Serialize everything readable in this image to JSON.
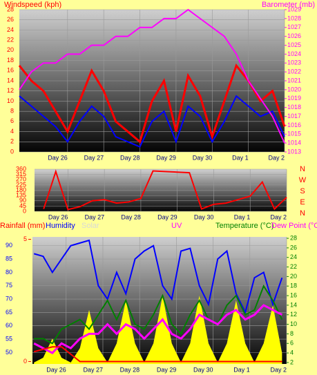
{
  "chart_data": [
    {
      "type": "line",
      "y_label": "Windspeed (kph)",
      "y2_label": "Barometer (mb)",
      "x": [
        0,
        8,
        16,
        24,
        32,
        40,
        48,
        56,
        64,
        72,
        80,
        88,
        96,
        104,
        112,
        120,
        128,
        136,
        144,
        152,
        160,
        168,
        176
      ],
      "xlim": [
        0,
        176
      ],
      "xticks": [
        {
          "value": 32,
          "label": "Day 26"
        },
        {
          "value": 56,
          "label": "Day 27"
        },
        {
          "value": 80,
          "label": "Day 28"
        },
        {
          "value": 104,
          "label": "Day 29"
        },
        {
          "value": 128,
          "label": "Day 30"
        },
        {
          "value": 152,
          "label": "Day 1"
        },
        {
          "value": 176,
          "label": "Day 2"
        }
      ],
      "ylim": [
        0,
        28
      ],
      "yticks": [
        0,
        2,
        4,
        6,
        8,
        10,
        12,
        14,
        16,
        18,
        20,
        22,
        24,
        26,
        28
      ],
      "y_color": "#ff0000",
      "y2lim": [
        1013,
        1029
      ],
      "y2ticks": [
        1013,
        1014,
        1015,
        1016,
        1017,
        1018,
        1019,
        1020,
        1021,
        1022,
        1023,
        1024,
        1025,
        1026,
        1027,
        1028,
        1029
      ],
      "y2_color": "#ff00ff",
      "series": [
        {
          "color": "#ff0000",
          "width": 3,
          "values": [
            17,
            14,
            12,
            8,
            4,
            10,
            16,
            12,
            6,
            4,
            2,
            10,
            14,
            4,
            15,
            11,
            3,
            10,
            17,
            14,
            10,
            12,
            5
          ]
        },
        {
          "color": "#0000ff",
          "width": 2,
          "values": [
            11,
            9,
            7,
            5,
            2,
            6,
            9,
            7,
            3,
            2,
            1,
            6,
            8,
            2,
            9,
            7,
            2,
            6,
            11,
            9,
            7,
            8,
            3
          ]
        },
        {
          "color": "#ff00ff",
          "width": 2,
          "axis": "y2",
          "values": [
            1020,
            1022,
            1023,
            1023,
            1024,
            1024,
            1025,
            1025,
            1026,
            1026,
            1027,
            1027,
            1028,
            1028,
            1029,
            1028,
            1027,
            1026,
            1024,
            1021,
            1019,
            1017,
            1014
          ]
        }
      ]
    },
    {
      "type": "line",
      "compass_labels": [
        "N",
        "W",
        "S",
        "E",
        "N"
      ],
      "x": [
        16,
        24,
        32,
        40,
        48,
        56,
        64,
        72,
        80,
        88,
        96,
        104,
        112,
        120,
        128,
        136,
        144,
        152,
        160,
        168,
        176
      ],
      "xlim": [
        10,
        176
      ],
      "xticks": [
        {
          "value": 32,
          "label": "Day 26"
        },
        {
          "value": 56,
          "label": "Day 27"
        },
        {
          "value": 80,
          "label": "Day 28"
        },
        {
          "value": 104,
          "label": "Day 29"
        },
        {
          "value": 128,
          "label": "Day 30"
        },
        {
          "value": 152,
          "label": "Day 1"
        },
        {
          "value": 176,
          "label": "Day 2"
        }
      ],
      "ylim": [
        0,
        360
      ],
      "yticks": [
        0,
        45,
        90,
        135,
        180,
        225,
        270,
        315,
        360
      ],
      "y_color": "#ff0000",
      "series": [
        {
          "color": "#ff0000",
          "width": 2,
          "values": [
            20,
            340,
            15,
            40,
            90,
            100,
            70,
            80,
            110,
            345,
            340,
            335,
            330,
            20,
            60,
            70,
            100,
            130,
            250,
            20,
            120
          ]
        }
      ]
    },
    {
      "type": "line",
      "labels": [
        {
          "text": "Rainfall (mm)",
          "color": "#ff0000"
        },
        {
          "text": "Humidity",
          "color": "#0000ff"
        },
        {
          "text": "Solar",
          "color": "#d8d8d8"
        },
        {
          "text": "UV",
          "color": "#ff00ff"
        },
        {
          "text": "Temperature (°C)",
          "color": "#008000"
        },
        {
          "text": "Dew Point (°C",
          "color": "#ff00ff"
        }
      ],
      "x": [
        11,
        17,
        23,
        29,
        35,
        41,
        47,
        53,
        59,
        65,
        71,
        77,
        83,
        89,
        95,
        101,
        107,
        113,
        119,
        125,
        131,
        137,
        143,
        149,
        155,
        161,
        167,
        173
      ],
      "xlim": [
        10,
        176
      ],
      "xticks": [
        {
          "value": 32,
          "label": "Day 26"
        },
        {
          "value": 56,
          "label": "Day 27"
        },
        {
          "value": 80,
          "label": "Day 28"
        },
        {
          "value": 104,
          "label": "Day 29"
        },
        {
          "value": 128,
          "label": "Day 30"
        },
        {
          "value": 152,
          "label": "Day 1"
        },
        {
          "value": 176,
          "label": "Day 2"
        }
      ],
      "ylim": [
        45.7,
        93.3
      ],
      "yticks": [
        50,
        55,
        60,
        65,
        70,
        75,
        80,
        85,
        90
      ],
      "y_color": "#0000ff",
      "y2lim": [
        1.7,
        28.3
      ],
      "y2ticks": [
        2,
        4,
        6,
        8,
        10,
        12,
        14,
        16,
        18,
        20,
        22,
        24,
        26,
        28
      ],
      "y2_color": "#008000",
      "rainlim": [
        -0.1,
        5.1
      ],
      "rainticks": [
        0,
        5
      ],
      "rain_color": "#ff0000",
      "series": [
        {
          "color": "#ffff00",
          "fill": true,
          "axis": "y2",
          "values": [
            2,
            3,
            7,
            3,
            2,
            5,
            13,
            5,
            2,
            6,
            15,
            6,
            2,
            6,
            16,
            6,
            2,
            6,
            16,
            6,
            2,
            6,
            15,
            6,
            2,
            6,
            14,
            4
          ]
        },
        {
          "color": "#0000ff",
          "width": 2,
          "values": [
            87,
            86,
            80,
            85,
            90,
            91,
            92,
            75,
            70,
            80,
            72,
            85,
            88,
            90,
            75,
            70,
            88,
            89,
            75,
            68,
            85,
            88,
            72,
            65,
            78,
            80,
            68,
            78
          ]
        },
        {
          "color": "#008000",
          "width": 2,
          "axis": "y2",
          "values": [
            7,
            7,
            6,
            9,
            10,
            11,
            9,
            12,
            15,
            11,
            15,
            10,
            9,
            12,
            16,
            10,
            8,
            12,
            15,
            11,
            10,
            14,
            16,
            12,
            13,
            18,
            15,
            11
          ]
        },
        {
          "color": "#ff00ff",
          "width": 3,
          "axis": "y2",
          "values": [
            6,
            5,
            4,
            6,
            5,
            7,
            8,
            8,
            10,
            8,
            10,
            9,
            7,
            9,
            11,
            8,
            7,
            9,
            12,
            11,
            10,
            12,
            13,
            11,
            12,
            14,
            13,
            12
          ]
        },
        {
          "color": "#ff0000",
          "width": 2,
          "axis": "rain",
          "values": [
            0.4,
            0.5,
            0.6,
            0.6,
            0.3,
            0,
            0,
            0,
            0,
            0,
            0,
            0,
            0,
            0,
            0,
            0,
            0,
            0,
            0,
            0,
            0,
            0,
            0,
            0,
            0,
            0,
            0,
            0
          ]
        }
      ]
    }
  ]
}
